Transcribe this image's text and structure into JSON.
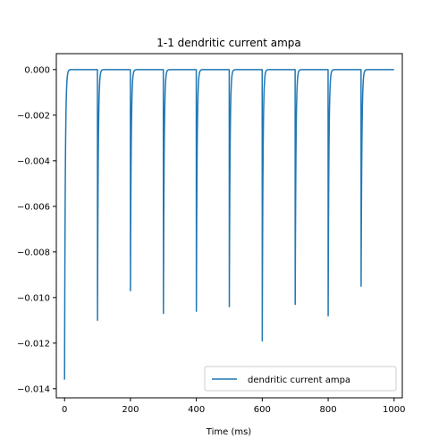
{
  "chart_data": {
    "type": "line",
    "title": "1-1 dendritic current ampa",
    "xlabel": "Time (ms)",
    "ylabel": "",
    "xlim": [
      -25,
      1025
    ],
    "ylim": [
      -0.0144,
      0.0007
    ],
    "x_ticks": [
      0,
      200,
      400,
      600,
      800,
      1000
    ],
    "x_tick_labels": [
      "0",
      "200",
      "400",
      "600",
      "800",
      "1000"
    ],
    "y_ticks": [
      0.0,
      -0.002,
      -0.004,
      -0.006,
      -0.008,
      -0.01,
      -0.012,
      -0.014
    ],
    "y_tick_labels": [
      "0.000",
      "−0.002",
      "−0.004",
      "−0.006",
      "−0.008",
      "−0.010",
      "−0.012",
      "−0.014"
    ],
    "grid": false,
    "legend": {
      "placement": "lower right",
      "entries": [
        "dendritic current ampa"
      ]
    },
    "series": [
      {
        "name": "dendritic current ampa",
        "color": "#1f77b4",
        "x_start": 0,
        "x_end": 1000,
        "spike_times": [
          0,
          100,
          200,
          300,
          400,
          500,
          600,
          700,
          800,
          900
        ],
        "spike_peaks": [
          -0.0136,
          -0.011,
          -0.0097,
          -0.0107,
          -0.0106,
          -0.0104,
          -0.0119,
          -0.0103,
          -0.0108,
          -0.0095
        ]
      }
    ]
  }
}
